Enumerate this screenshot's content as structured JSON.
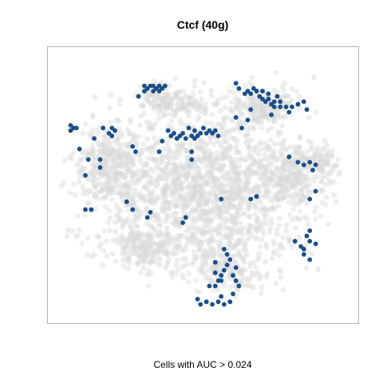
{
  "chart_data": {
    "type": "scatter",
    "title": "Ctcf (40g)",
    "xlabel": "Cells with AUC > 0.024",
    "ylabel": "",
    "grid": false,
    "legend": "none",
    "axes_visible": false,
    "colors": {
      "background_cells": "#d9d9d9",
      "highlighted_cells": "#1a4f8a",
      "plot_border": "#b3b3b3"
    },
    "background_regions": [
      {
        "center": [
          0.5,
          0.52
        ],
        "spread": [
          0.36,
          0.3
        ],
        "count": 1600
      },
      {
        "center": [
          0.18,
          0.42
        ],
        "spread": [
          0.1,
          0.14
        ],
        "count": 260
      },
      {
        "center": [
          0.4,
          0.18
        ],
        "spread": [
          0.11,
          0.06
        ],
        "count": 150
      },
      {
        "center": [
          0.7,
          0.2
        ],
        "spread": [
          0.13,
          0.07
        ],
        "count": 180
      },
      {
        "center": [
          0.8,
          0.45
        ],
        "spread": [
          0.12,
          0.12
        ],
        "count": 230
      },
      {
        "center": [
          0.58,
          0.82
        ],
        "spread": [
          0.12,
          0.07
        ],
        "count": 140
      },
      {
        "center": [
          0.3,
          0.73
        ],
        "spread": [
          0.14,
          0.08
        ],
        "count": 170
      },
      {
        "center": [
          0.9,
          0.4
        ],
        "spread": [
          0.06,
          0.05
        ],
        "count": 60
      }
    ],
    "highlight_points": [
      [
        0.3,
        0.12
      ],
      [
        0.31,
        0.13
      ],
      [
        0.32,
        0.12
      ],
      [
        0.33,
        0.12
      ],
      [
        0.34,
        0.13
      ],
      [
        0.35,
        0.12
      ],
      [
        0.36,
        0.13
      ],
      [
        0.33,
        0.14
      ],
      [
        0.35,
        0.14
      ],
      [
        0.37,
        0.12
      ],
      [
        0.3,
        0.14
      ],
      [
        0.28,
        0.16
      ],
      [
        0.05,
        0.27
      ],
      [
        0.06,
        0.28
      ],
      [
        0.05,
        0.29
      ],
      [
        0.07,
        0.28
      ],
      [
        0.16,
        0.28
      ],
      [
        0.18,
        0.3
      ],
      [
        0.19,
        0.28
      ],
      [
        0.2,
        0.29
      ],
      [
        0.19,
        0.31
      ],
      [
        0.13,
        0.32
      ],
      [
        0.08,
        0.36
      ],
      [
        0.11,
        0.4
      ],
      [
        0.1,
        0.46
      ],
      [
        0.38,
        0.29
      ],
      [
        0.39,
        0.31
      ],
      [
        0.4,
        0.3
      ],
      [
        0.41,
        0.32
      ],
      [
        0.43,
        0.3
      ],
      [
        0.45,
        0.28
      ],
      [
        0.46,
        0.31
      ],
      [
        0.47,
        0.29
      ],
      [
        0.48,
        0.31
      ],
      [
        0.49,
        0.3
      ],
      [
        0.5,
        0.28
      ],
      [
        0.51,
        0.3
      ],
      [
        0.52,
        0.29
      ],
      [
        0.53,
        0.3
      ],
      [
        0.54,
        0.29
      ],
      [
        0.55,
        0.31
      ],
      [
        0.42,
        0.31
      ],
      [
        0.44,
        0.32
      ],
      [
        0.47,
        0.32
      ],
      [
        0.36,
        0.33
      ],
      [
        0.26,
        0.35
      ],
      [
        0.27,
        0.37
      ],
      [
        0.35,
        0.37
      ],
      [
        0.46,
        0.37
      ],
      [
        0.46,
        0.4
      ],
      [
        0.15,
        0.4
      ],
      [
        0.15,
        0.43
      ],
      [
        0.61,
        0.11
      ],
      [
        0.62,
        0.13
      ],
      [
        0.64,
        0.15
      ],
      [
        0.65,
        0.14
      ],
      [
        0.66,
        0.15
      ],
      [
        0.67,
        0.13
      ],
      [
        0.68,
        0.14
      ],
      [
        0.69,
        0.16
      ],
      [
        0.7,
        0.14
      ],
      [
        0.7,
        0.17
      ],
      [
        0.71,
        0.18
      ],
      [
        0.72,
        0.15
      ],
      [
        0.72,
        0.17
      ],
      [
        0.73,
        0.19
      ],
      [
        0.74,
        0.18
      ],
      [
        0.75,
        0.16
      ],
      [
        0.74,
        0.2
      ],
      [
        0.76,
        0.18
      ],
      [
        0.76,
        0.2
      ],
      [
        0.78,
        0.2
      ],
      [
        0.79,
        0.22
      ],
      [
        0.8,
        0.2
      ],
      [
        0.82,
        0.19
      ],
      [
        0.84,
        0.18
      ],
      [
        0.85,
        0.21
      ],
      [
        0.73,
        0.23
      ],
      [
        0.66,
        0.21
      ],
      [
        0.65,
        0.25
      ],
      [
        0.63,
        0.28
      ],
      [
        0.61,
        0.24
      ],
      [
        0.79,
        0.39
      ],
      [
        0.82,
        0.41
      ],
      [
        0.84,
        0.42
      ],
      [
        0.86,
        0.41
      ],
      [
        0.88,
        0.42
      ],
      [
        0.87,
        0.44
      ],
      [
        0.56,
        0.55
      ],
      [
        0.66,
        0.55
      ],
      [
        0.68,
        0.54
      ],
      [
        0.86,
        0.55
      ],
      [
        0.88,
        0.52
      ],
      [
        0.1,
        0.59
      ],
      [
        0.12,
        0.59
      ],
      [
        0.24,
        0.56
      ],
      [
        0.26,
        0.59
      ],
      [
        0.31,
        0.62
      ],
      [
        0.32,
        0.6
      ],
      [
        0.43,
        0.64
      ],
      [
        0.44,
        0.62
      ],
      [
        0.81,
        0.71
      ],
      [
        0.83,
        0.73
      ],
      [
        0.84,
        0.74
      ],
      [
        0.86,
        0.71
      ],
      [
        0.88,
        0.72
      ],
      [
        0.86,
        0.67
      ],
      [
        0.85,
        0.69
      ],
      [
        0.84,
        0.76
      ],
      [
        0.86,
        0.78
      ],
      [
        0.57,
        0.74
      ],
      [
        0.58,
        0.76
      ],
      [
        0.59,
        0.78
      ],
      [
        0.58,
        0.8
      ],
      [
        0.57,
        0.82
      ],
      [
        0.56,
        0.84
      ],
      [
        0.55,
        0.86
      ],
      [
        0.54,
        0.88
      ],
      [
        0.52,
        0.88
      ],
      [
        0.54,
        0.79
      ],
      [
        0.54,
        0.83
      ],
      [
        0.56,
        0.86
      ],
      [
        0.6,
        0.84
      ],
      [
        0.61,
        0.86
      ],
      [
        0.62,
        0.88
      ],
      [
        0.6,
        0.91
      ],
      [
        0.59,
        0.94
      ],
      [
        0.57,
        0.95
      ],
      [
        0.55,
        0.94
      ],
      [
        0.53,
        0.95
      ],
      [
        0.51,
        0.94
      ],
      [
        0.49,
        0.95
      ],
      [
        0.48,
        0.93
      ],
      [
        0.56,
        0.92
      ],
      [
        0.61,
        0.81
      ]
    ]
  }
}
